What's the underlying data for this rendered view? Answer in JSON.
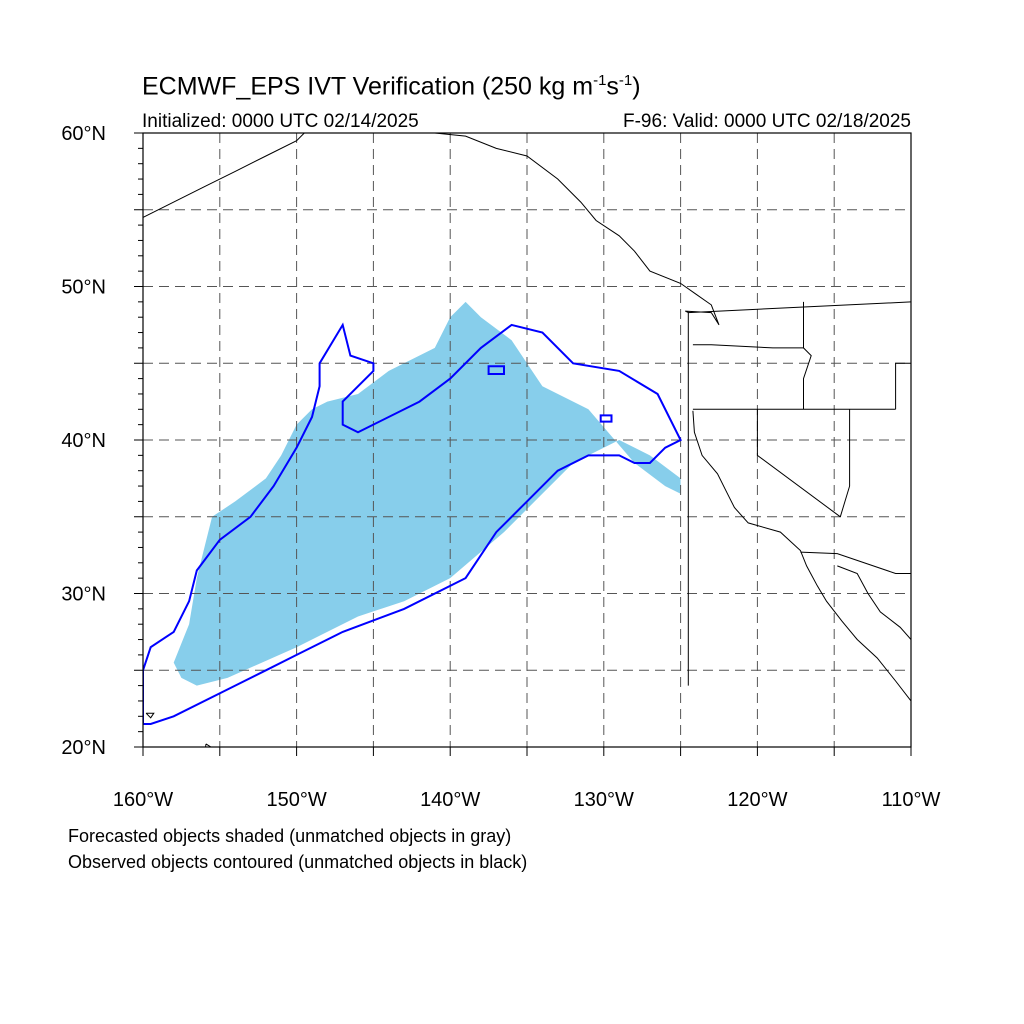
{
  "title": {
    "main_prefix": "ECMWF_EPS IVT Verification (250 kg m",
    "sup1": "-1",
    "mid": "s",
    "sup2": "-1",
    "suffix": ")"
  },
  "subtitle": {
    "initialized": "Initialized: 0000 UTC 02/14/2025",
    "valid": "F-96: Valid: 0000 UTC 02/18/2025"
  },
  "axes": {
    "lat_labels": [
      "20°N",
      "30°N",
      "40°N",
      "50°N",
      "60°N"
    ],
    "lon_labels": [
      "160°W",
      "150°W",
      "140°W",
      "130°W",
      "120°W",
      "110°W"
    ],
    "lat_range": [
      20,
      60
    ],
    "lon_range": [
      -160,
      -110
    ],
    "grid": "dashed, every 5 degrees"
  },
  "captions": [
    "Forecasted objects shaded (unmatched objects in gray)",
    "Observed objects contoured (unmatched objects in black)"
  ],
  "colors": {
    "forecast_fill": "#87CEEB",
    "observed_contour": "#0000FF",
    "grid": "#555555",
    "coast": "#000000"
  },
  "forecast_object": {
    "polygon_lonlat": [
      [
        -157.5,
        24.5
      ],
      [
        -156.5,
        24.0
      ],
      [
        -154.5,
        24.5
      ],
      [
        -150,
        26.5
      ],
      [
        -146,
        28.5
      ],
      [
        -143,
        29.5
      ],
      [
        -140,
        31
      ],
      [
        -136.5,
        34
      ],
      [
        -134.5,
        36
      ],
      [
        -132,
        38.5
      ],
      [
        -129,
        40
      ],
      [
        -127,
        39
      ],
      [
        -125,
        37.5
      ],
      [
        -125,
        36.5
      ],
      [
        -126,
        37
      ],
      [
        -128,
        38.5
      ],
      [
        -131,
        42
      ],
      [
        -134,
        43.5
      ],
      [
        -136,
        46.5
      ],
      [
        -138,
        48
      ],
      [
        -139,
        49
      ],
      [
        -140,
        48
      ],
      [
        -141,
        46
      ],
      [
        -144,
        44.5
      ],
      [
        -146,
        43
      ],
      [
        -148,
        42.5
      ],
      [
        -149,
        42
      ],
      [
        -150,
        41
      ],
      [
        -151,
        39
      ],
      [
        -152,
        37.5
      ],
      [
        -154,
        36
      ],
      [
        -155.5,
        35
      ],
      [
        -156,
        33
      ],
      [
        -156.5,
        31
      ],
      [
        -157,
        28
      ],
      [
        -158,
        25.5
      ]
    ]
  },
  "observed_object": {
    "polygon_lonlat": [
      [
        -160,
        25
      ],
      [
        -159.5,
        26.5
      ],
      [
        -158,
        27.5
      ],
      [
        -157,
        29.5
      ],
      [
        -156.5,
        31.5
      ],
      [
        -155,
        33.5
      ],
      [
        -153,
        35
      ],
      [
        -151.5,
        37
      ],
      [
        -150,
        39.5
      ],
      [
        -149,
        41.5
      ],
      [
        -148.5,
        43.5
      ],
      [
        -148.5,
        45
      ],
      [
        -147,
        47.5
      ],
      [
        -146.5,
        45.5
      ],
      [
        -145,
        45
      ],
      [
        -145,
        44.5
      ],
      [
        -147,
        42.5
      ],
      [
        -147,
        41
      ],
      [
        -146,
        40.5
      ],
      [
        -142,
        42.5
      ],
      [
        -140,
        44
      ],
      [
        -138,
        46
      ],
      [
        -136,
        47.5
      ],
      [
        -134,
        47
      ],
      [
        -132,
        45
      ],
      [
        -129,
        44.5
      ],
      [
        -126.5,
        43
      ],
      [
        -125,
        40
      ],
      [
        -126,
        39.5
      ],
      [
        -127,
        38.5
      ],
      [
        -128,
        38.5
      ],
      [
        -129,
        39
      ],
      [
        -131,
        39
      ],
      [
        -133,
        38
      ],
      [
        -135,
        36
      ],
      [
        -137,
        34
      ],
      [
        -139,
        31
      ],
      [
        -143,
        29
      ],
      [
        -147,
        27.5
      ],
      [
        -150,
        26
      ],
      [
        -152,
        25
      ],
      [
        -154,
        24
      ],
      [
        -158,
        22
      ],
      [
        -159.5,
        21.5
      ],
      [
        -160,
        21.5
      ]
    ]
  },
  "observed_small_objects": [
    {
      "polygon_lonlat": [
        [
          -137.5,
          44.8
        ],
        [
          -136.5,
          44.8
        ],
        [
          -136.5,
          44.3
        ],
        [
          -137.5,
          44.3
        ]
      ]
    },
    {
      "polygon_lonlat": [
        [
          -130.2,
          41.6
        ],
        [
          -129.5,
          41.6
        ],
        [
          -129.5,
          41.2
        ],
        [
          -130.2,
          41.2
        ]
      ]
    }
  ]
}
